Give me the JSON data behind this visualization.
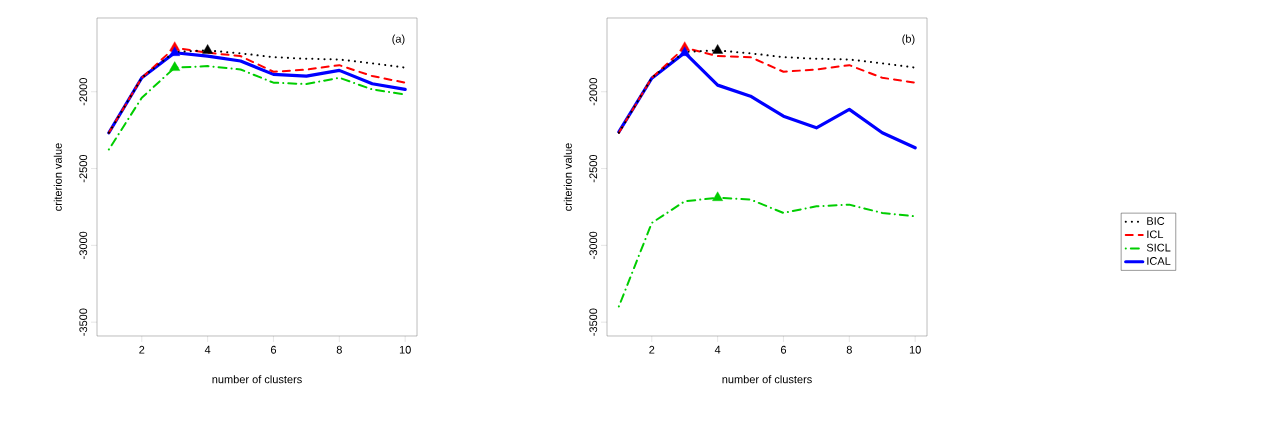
{
  "chart_data": [
    {
      "type": "line",
      "annotations": [
        "(a)"
      ],
      "xlabel": "number of clusters",
      "ylabel": "criterion value",
      "x": [
        1,
        2,
        3,
        4,
        5,
        6,
        7,
        8,
        9,
        10
      ],
      "xlim": [
        0.64,
        10.36
      ],
      "ylim": [
        -3590,
        -1520
      ],
      "xticks": [
        2,
        4,
        6,
        8,
        10
      ],
      "yticks": [
        -3500,
        -3000,
        -2500,
        -2000
      ],
      "legend": false,
      "series": [
        {
          "color": "#000000",
          "line_style": "dotted",
          "values": [
            -2267,
            -1909,
            -1740,
            -1731,
            -1750,
            -1775,
            -1785,
            -1790,
            -1815,
            -1843
          ]
        },
        {
          "color": "#ff0000",
          "line_style": "dashed",
          "values": [
            -2267,
            -1909,
            -1713,
            -1746,
            -1768,
            -1870,
            -1856,
            -1827,
            -1898,
            -1941
          ]
        },
        {
          "color": "#00cd00",
          "line_style": "dashdotted",
          "values": [
            -2376,
            -2039,
            -1843,
            -1833,
            -1855,
            -1941,
            -1950,
            -1909,
            -1985,
            -2018
          ]
        },
        {
          "color": "#0000ff",
          "line_style": "solid",
          "values": [
            -2267,
            -1909,
            -1746,
            -1768,
            -1800,
            -1887,
            -1898,
            -1861,
            -1948,
            -1985
          ]
        },
        {
          "type": "scatter",
          "marker": "triangle",
          "color": "#000000",
          "values": [
            null,
            null,
            null,
            -1731,
            null,
            null,
            null,
            null,
            null,
            null
          ]
        },
        {
          "type": "scatter",
          "marker": "triangle",
          "color": "#ff0000",
          "values": [
            null,
            null,
            -1713,
            null,
            null,
            null,
            null,
            null,
            null,
            null
          ]
        },
        {
          "type": "scatter",
          "marker": "triangle",
          "color": "#00cd00",
          "values": [
            null,
            null,
            -1843,
            null,
            null,
            null,
            null,
            null,
            null,
            null
          ]
        },
        {
          "type": "scatter",
          "marker": "triangle",
          "color": "#0000ff",
          "values": [
            null,
            null,
            -1746,
            null,
            null,
            null,
            null,
            null,
            null,
            null
          ]
        }
      ]
    },
    {
      "type": "line",
      "annotations": [
        "(b)"
      ],
      "xlabel": "number of clusters",
      "ylabel": "criterion value",
      "x": [
        1,
        2,
        3,
        4,
        5,
        6,
        7,
        8,
        9,
        10
      ],
      "xlim": [
        0.64,
        10.36
      ],
      "ylim": [
        -3590,
        -1520
      ],
      "xticks": [
        2,
        4,
        6,
        8,
        10
      ],
      "yticks": [
        -3500,
        -3000,
        -2500,
        -2000
      ],
      "legend": "right",
      "series": [
        {
          "name": "BIC",
          "color": "#000000",
          "line_style": "dotted",
          "values": [
            -2267,
            -1909,
            -1740,
            -1731,
            -1750,
            -1775,
            -1785,
            -1790,
            -1815,
            -1843
          ]
        },
        {
          "name": "ICL",
          "color": "#ff0000",
          "line_style": "dashed",
          "values": [
            -2267,
            -1909,
            -1713,
            -1768,
            -1775,
            -1870,
            -1855,
            -1827,
            -1909,
            -1941
          ]
        },
        {
          "name": "SICL",
          "color": "#00cd00",
          "line_style": "dashdotted",
          "values": [
            -3398,
            -2854,
            -2713,
            -2690,
            -2702,
            -2789,
            -2746,
            -2735,
            -2789,
            -2811
          ]
        },
        {
          "name": "ICAL",
          "color": "#0000ff",
          "line_style": "solid",
          "values": [
            -2261,
            -1912,
            -1746,
            -1957,
            -2029,
            -2159,
            -2235,
            -2115,
            -2267,
            -2365
          ]
        },
        {
          "type": "scatter",
          "marker": "triangle",
          "color": "#000000",
          "values": [
            null,
            null,
            null,
            -1731,
            null,
            null,
            null,
            null,
            null,
            null
          ]
        },
        {
          "type": "scatter",
          "marker": "triangle",
          "color": "#ff0000",
          "values": [
            null,
            null,
            -1713,
            null,
            null,
            null,
            null,
            null,
            null,
            null
          ]
        },
        {
          "type": "scatter",
          "marker": "triangle",
          "color": "#00cd00",
          "values": [
            null,
            null,
            null,
            -2690,
            null,
            null,
            null,
            null,
            null,
            null
          ]
        },
        {
          "type": "scatter",
          "marker": "triangle",
          "color": "#0000ff",
          "values": [
            null,
            null,
            -1746,
            null,
            null,
            null,
            null,
            null,
            null,
            null
          ]
        }
      ]
    }
  ]
}
